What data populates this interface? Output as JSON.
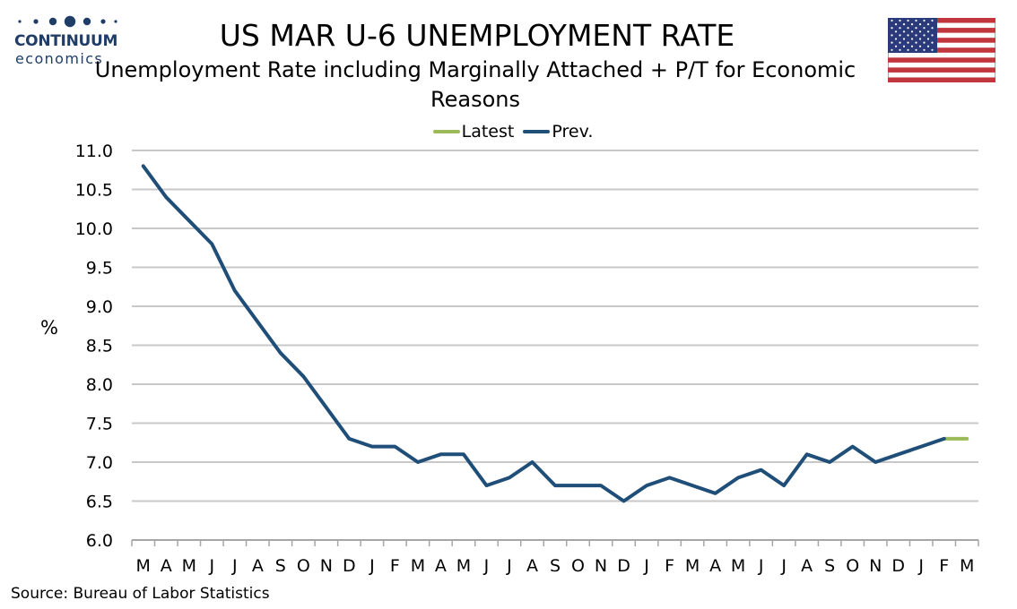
{
  "logo": {
    "name": "CONTINUUM",
    "tagline": "economics"
  },
  "title": "US MAR U-6 UNEMPLOYMENT RATE",
  "subtitle": "Unemployment Rate including Marginally Attached + P/T for Economic Reasons",
  "source": "Source: Bureau of Labor Statistics",
  "colors": {
    "prev": "#1f4e79",
    "latest": "#9bbb59",
    "grid": "#c8c8c8",
    "logo": "#1f3d66"
  },
  "flag_icon": "us-flag-icon",
  "chart_data": {
    "type": "line",
    "ylabel": "%",
    "ylim": [
      6.0,
      11.0
    ],
    "yticks": [
      "6.0",
      "6.5",
      "7.0",
      "7.5",
      "8.0",
      "8.5",
      "9.0",
      "9.5",
      "10.0",
      "10.5",
      "11.0"
    ],
    "grid": true,
    "legend_position": "top-center",
    "categories": [
      "M",
      "A",
      "M",
      "J",
      "J",
      "A",
      "S",
      "O",
      "N",
      "D",
      "J",
      "F",
      "M",
      "A",
      "M",
      "J",
      "J",
      "A",
      "S",
      "O",
      "N",
      "D",
      "J",
      "F",
      "M",
      "A",
      "M",
      "J",
      "J",
      "A",
      "S",
      "O",
      "N",
      "D",
      "J",
      "F",
      "M"
    ],
    "series": [
      {
        "name": "Latest",
        "values": [
          null,
          null,
          null,
          null,
          null,
          null,
          null,
          null,
          null,
          null,
          null,
          null,
          null,
          null,
          null,
          null,
          null,
          null,
          null,
          null,
          null,
          null,
          null,
          null,
          null,
          null,
          null,
          null,
          null,
          null,
          null,
          null,
          null,
          null,
          null,
          7.3,
          7.3
        ]
      },
      {
        "name": "Prev.",
        "values": [
          10.8,
          10.4,
          10.1,
          9.8,
          9.2,
          8.8,
          8.4,
          8.1,
          7.7,
          7.3,
          7.2,
          7.2,
          7.0,
          7.1,
          7.1,
          6.7,
          6.8,
          7.0,
          6.7,
          6.7,
          6.7,
          6.5,
          6.7,
          6.8,
          6.7,
          6.6,
          6.8,
          6.9,
          6.7,
          7.1,
          7.0,
          7.2,
          7.0,
          7.1,
          7.2,
          7.3,
          null
        ]
      }
    ]
  }
}
